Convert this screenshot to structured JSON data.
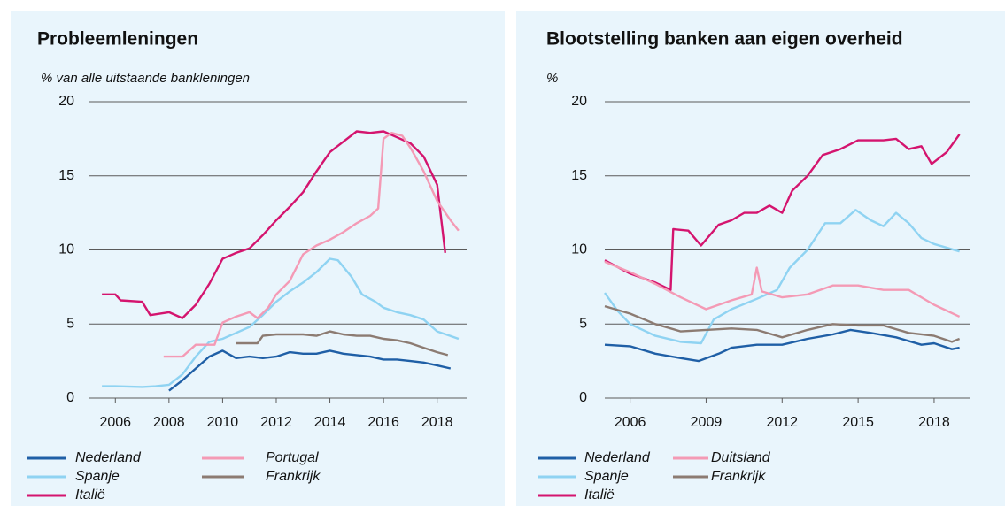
{
  "chart_data": [
    {
      "type": "line",
      "title": "Probleemleningen",
      "subtitle": "% van alle uitstaande bankleningen",
      "xlim": [
        2005,
        2019.1
      ],
      "xticks": [
        2006,
        2008,
        2010,
        2012,
        2014,
        2016,
        2018
      ],
      "ylim": [
        0,
        20
      ],
      "yticks": [
        0,
        5,
        10,
        15,
        20
      ],
      "grid": true,
      "legend": "bottom",
      "series": [
        {
          "name": "Nederland",
          "color": "#1f5fa6",
          "x": [
            2008.0,
            2008.5,
            2009,
            2009.5,
            2010,
            2010.5,
            2011,
            2011.5,
            2012,
            2012.5,
            2013,
            2013.5,
            2014,
            2014.5,
            2015,
            2015.5,
            2016,
            2016.5,
            2017,
            2017.5,
            2018,
            2018.5
          ],
          "values": [
            0.5,
            1.2,
            2.0,
            2.8,
            3.2,
            2.7,
            2.8,
            2.7,
            2.8,
            3.1,
            3.0,
            3.0,
            3.2,
            3.0,
            2.9,
            2.8,
            2.6,
            2.6,
            2.5,
            2.4,
            2.2,
            2.0
          ]
        },
        {
          "name": "Spanje",
          "color": "#8fd3f2",
          "x": [
            2005.5,
            2006,
            2007,
            2007.5,
            2008,
            2008.5,
            2009,
            2009.5,
            2010,
            2010.5,
            2011,
            2011.5,
            2012,
            2012.5,
            2013,
            2013.5,
            2014,
            2014.3,
            2014.8,
            2015.2,
            2015.7,
            2016,
            2016.5,
            2017,
            2017.5,
            2018,
            2018.8
          ],
          "values": [
            0.8,
            0.8,
            0.75,
            0.8,
            0.9,
            1.6,
            2.8,
            3.8,
            4.0,
            4.4,
            4.8,
            5.6,
            6.5,
            7.2,
            7.8,
            8.5,
            9.4,
            9.3,
            8.2,
            7.0,
            6.5,
            6.1,
            5.8,
            5.6,
            5.3,
            4.5,
            4.0
          ]
        },
        {
          "name": "Italië",
          "color": "#d4146e",
          "x": [
            2005.5,
            2006,
            2006.2,
            2007,
            2007.3,
            2008,
            2008.5,
            2009,
            2009.5,
            2010,
            2010.5,
            2011,
            2011.5,
            2012,
            2012.5,
            2013,
            2013.5,
            2014,
            2014.5,
            2015,
            2015.5,
            2016,
            2016.5,
            2017,
            2017.5,
            2018,
            2018.3
          ],
          "values": [
            7.0,
            7.0,
            6.6,
            6.5,
            5.6,
            5.8,
            5.4,
            6.3,
            7.7,
            9.4,
            9.8,
            10.1,
            11.0,
            12.0,
            12.9,
            13.9,
            15.3,
            16.6,
            17.3,
            18.0,
            17.9,
            18.0,
            17.6,
            17.2,
            16.3,
            14.4,
            9.8
          ]
        },
        {
          "name": "Portugal",
          "color": "#f49ab5",
          "x": [
            2007.8,
            2008.5,
            2009,
            2009.7,
            2010,
            2010.5,
            2011,
            2011.3,
            2011.7,
            2012,
            2012.5,
            2013,
            2013.5,
            2014,
            2014.5,
            2015,
            2015.5,
            2015.8,
            2016,
            2016.3,
            2016.7,
            2017,
            2017.5,
            2018,
            2018.5,
            2018.8
          ],
          "values": [
            2.8,
            2.8,
            3.6,
            3.6,
            5.1,
            5.5,
            5.8,
            5.4,
            6.1,
            7.0,
            7.9,
            9.7,
            10.3,
            10.7,
            11.2,
            11.8,
            12.3,
            12.8,
            17.5,
            17.9,
            17.7,
            16.9,
            15.3,
            13.3,
            12.0,
            11.3
          ]
        },
        {
          "name": "Frankrijk",
          "color": "#8c7b72",
          "x": [
            2010.5,
            2011.3,
            2011.5,
            2012,
            2012.5,
            2013,
            2013.5,
            2014,
            2014.5,
            2015,
            2015.5,
            2016,
            2016.5,
            2017,
            2017.5,
            2018,
            2018.4
          ],
          "values": [
            3.7,
            3.7,
            4.2,
            4.3,
            4.3,
            4.3,
            4.2,
            4.5,
            4.3,
            4.2,
            4.2,
            4.0,
            3.9,
            3.7,
            3.4,
            3.1,
            2.9
          ]
        }
      ]
    },
    {
      "type": "line",
      "title": "Blootstelling banken aan eigen overheid",
      "subtitle": "%",
      "xlim": [
        2005,
        2019.4
      ],
      "xticks": [
        2006,
        2009,
        2012,
        2015,
        2018
      ],
      "ylim": [
        0,
        20
      ],
      "yticks": [
        0,
        5,
        10,
        15,
        20
      ],
      "grid": true,
      "legend": "bottom",
      "series": [
        {
          "name": "Nederland",
          "color": "#1f5fa6",
          "x": [
            2005,
            2006,
            2007,
            2008,
            2008.7,
            2009.5,
            2010,
            2011,
            2012,
            2013,
            2014,
            2014.7,
            2015.5,
            2016.5,
            2017.5,
            2018,
            2018.7,
            2019
          ],
          "values": [
            3.6,
            3.5,
            3.0,
            2.7,
            2.5,
            3.0,
            3.4,
            3.6,
            3.6,
            4.0,
            4.3,
            4.6,
            4.4,
            4.1,
            3.6,
            3.7,
            3.3,
            3.4
          ]
        },
        {
          "name": "Spanje",
          "color": "#8fd3f2",
          "x": [
            2005,
            2005.5,
            2006,
            2007,
            2008,
            2008.8,
            2009.3,
            2010,
            2011,
            2011.8,
            2012.3,
            2013,
            2013.7,
            2014.3,
            2014.9,
            2015.5,
            2016,
            2016.5,
            2017,
            2017.5,
            2018,
            2019
          ],
          "values": [
            7.1,
            5.9,
            5.0,
            4.2,
            3.8,
            3.7,
            5.3,
            6.0,
            6.7,
            7.3,
            8.8,
            10.0,
            11.8,
            11.8,
            12.7,
            12.0,
            11.6,
            12.5,
            11.8,
            10.8,
            10.4,
            9.9
          ]
        },
        {
          "name": "Italië",
          "color": "#d4146e",
          "x": [
            2005,
            2006,
            2007,
            2007.6,
            2007.7,
            2008.3,
            2008.8,
            2009.5,
            2010,
            2010.5,
            2011,
            2011.5,
            2012,
            2012.4,
            2013,
            2013.6,
            2014.3,
            2015,
            2015.5,
            2016,
            2016.5,
            2017,
            2017.5,
            2017.9,
            2018.5,
            2019
          ],
          "values": [
            9.3,
            8.4,
            7.8,
            7.3,
            11.4,
            11.3,
            10.3,
            11.7,
            12.0,
            12.5,
            12.5,
            13.0,
            12.5,
            14.0,
            15.0,
            16.4,
            16.8,
            17.4,
            17.4,
            17.4,
            17.5,
            16.8,
            17.0,
            15.8,
            16.6,
            17.8
          ]
        },
        {
          "name": "Duitsland",
          "color": "#f49ab5",
          "x": [
            2005,
            2006,
            2007,
            2008,
            2009,
            2010,
            2010.8,
            2011,
            2011.2,
            2012,
            2013,
            2014,
            2015,
            2016,
            2017,
            2017.5,
            2018,
            2019
          ],
          "values": [
            9.2,
            8.5,
            7.7,
            6.8,
            6.0,
            6.6,
            7.0,
            8.8,
            7.2,
            6.8,
            7.0,
            7.6,
            7.6,
            7.3,
            7.3,
            6.8,
            6.3,
            5.5
          ]
        },
        {
          "name": "Frankrijk",
          "color": "#8c7b72",
          "x": [
            2005,
            2006,
            2007,
            2008,
            2009,
            2010,
            2011,
            2012,
            2013,
            2014,
            2015,
            2016,
            2017,
            2018,
            2018.7,
            2019
          ],
          "values": [
            6.2,
            5.7,
            5.0,
            4.5,
            4.6,
            4.7,
            4.6,
            4.1,
            4.6,
            5.0,
            4.9,
            4.9,
            4.4,
            4.2,
            3.8,
            4.0
          ]
        }
      ]
    }
  ]
}
